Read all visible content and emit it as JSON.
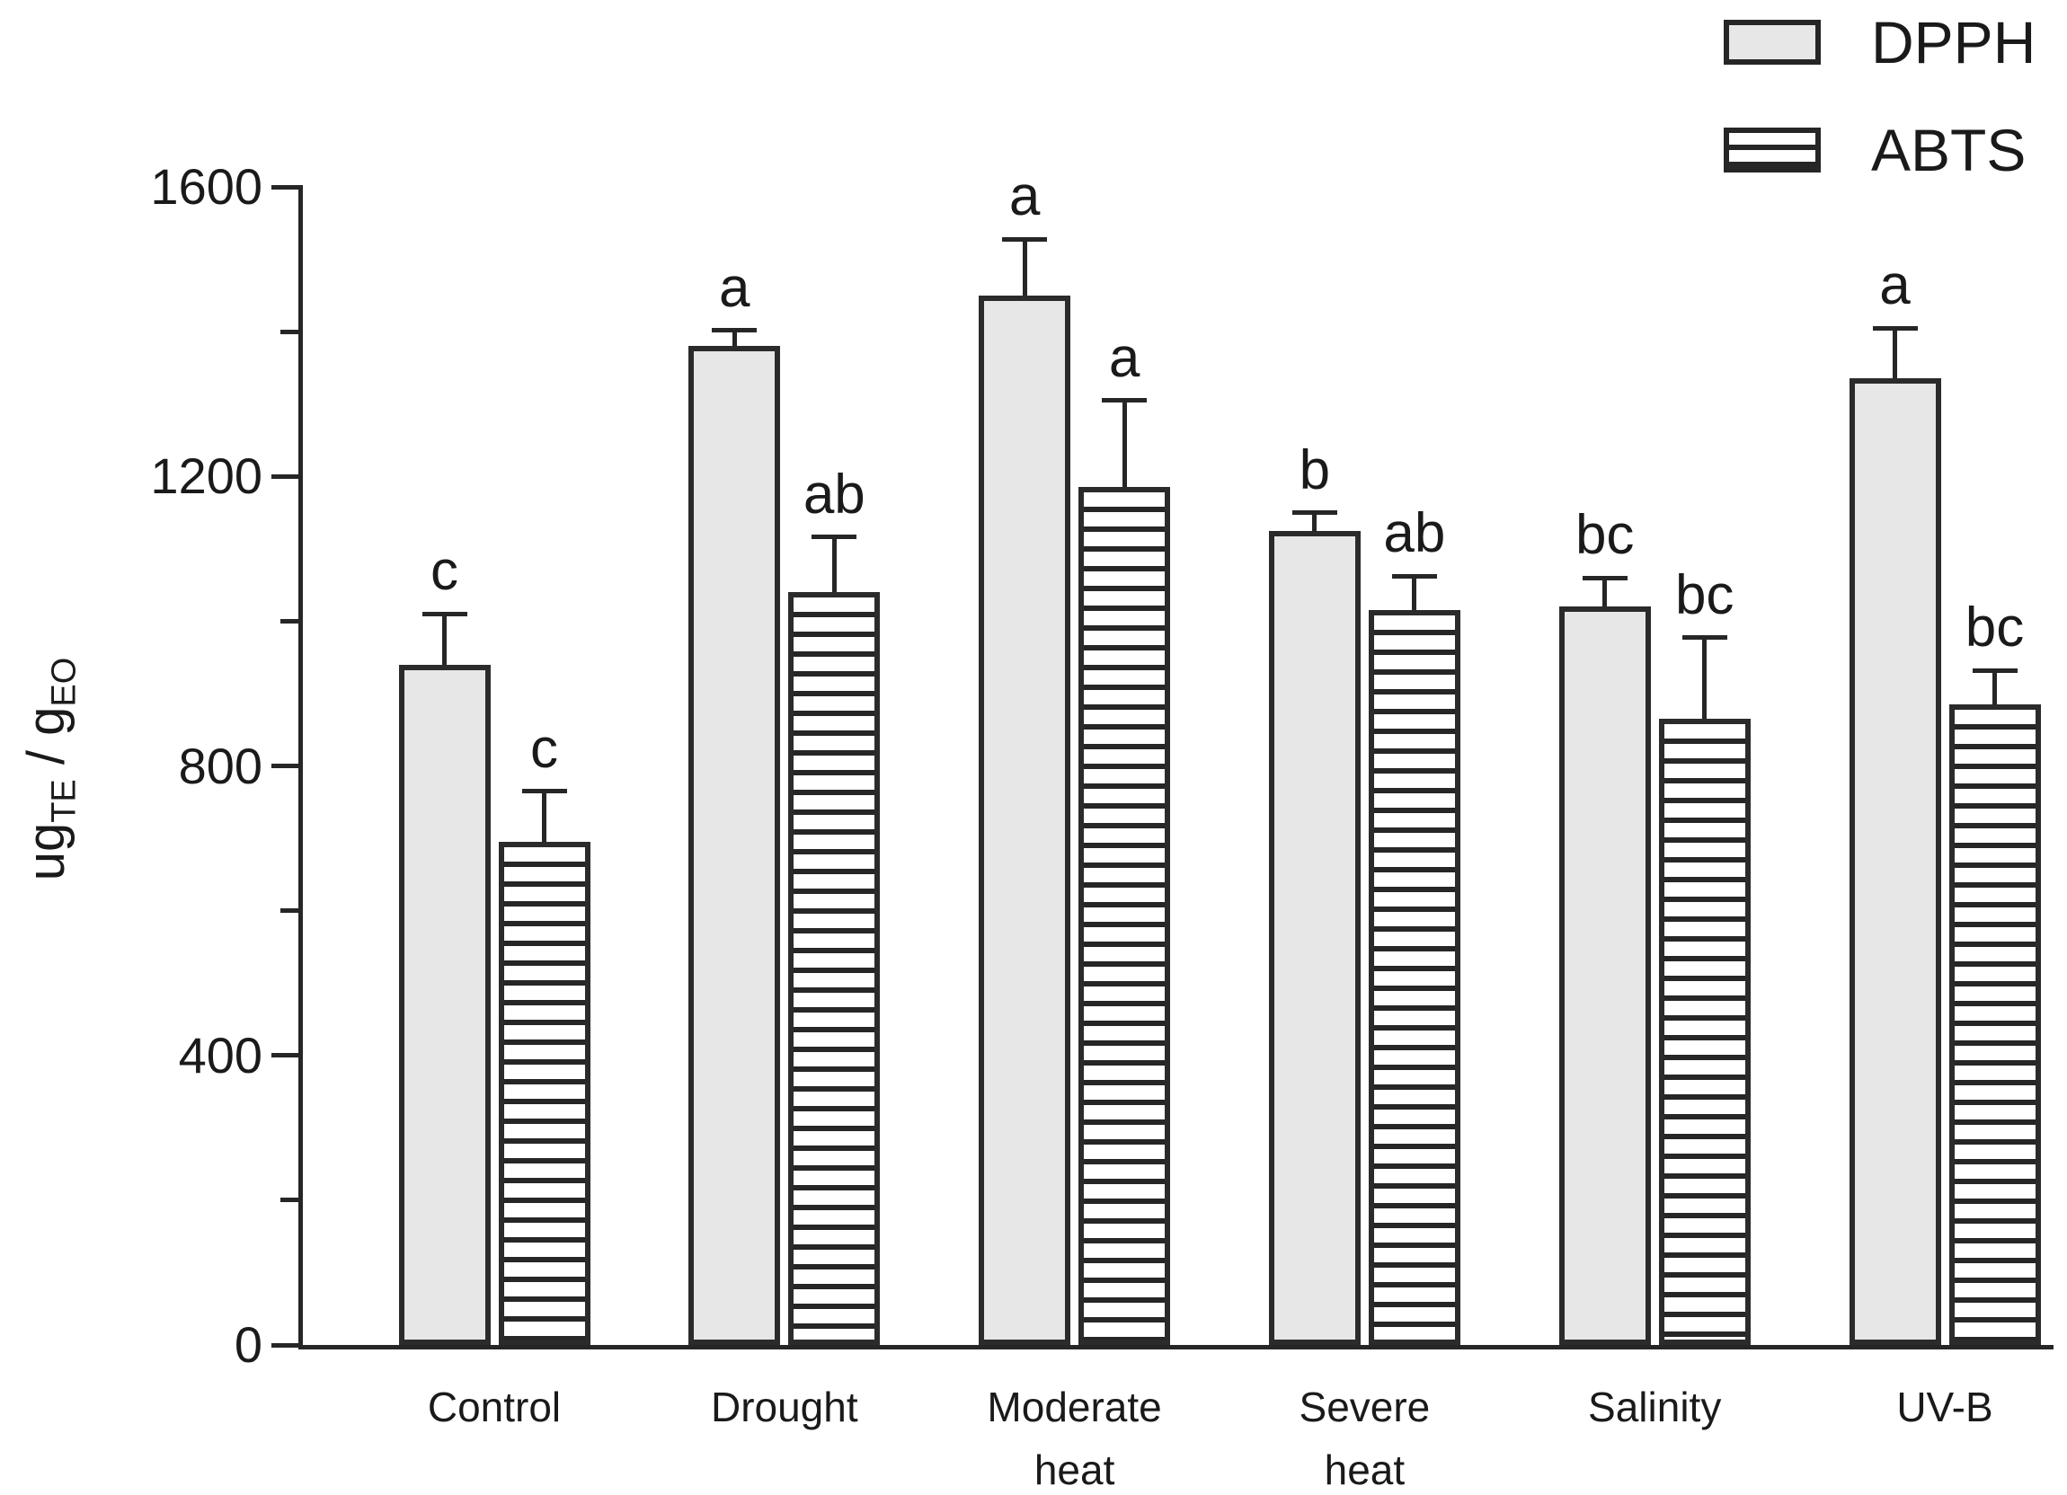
{
  "chart_data": {
    "type": "bar",
    "title": "",
    "ylabel_text": "ug_TE / g_EO",
    "ylabel_parts": {
      "pre": "ug",
      "pre_sub": "TE",
      "mid": " / g",
      "mid_sub": "EO"
    },
    "xlabel": "",
    "ylim": [
      0,
      1600
    ],
    "yticks": [
      0,
      400,
      800,
      1200,
      1600
    ],
    "yticks_minor": [
      200,
      600,
      1000,
      1400
    ],
    "grid": false,
    "legend_position": "top-right",
    "categories": [
      "Control",
      "Drought",
      "Moderate heat",
      "Severe heat",
      "Salinity",
      "UV-B"
    ],
    "categories_lines": [
      [
        "Control"
      ],
      [
        "Drought"
      ],
      [
        "Moderate",
        "heat"
      ],
      [
        "Severe",
        "heat"
      ],
      [
        "Salinity"
      ],
      [
        "UV-B"
      ]
    ],
    "series": [
      {
        "name": "DPPH",
        "pattern": "solid",
        "fill": "#e7e7e7",
        "values": [
          940,
          1380,
          1450,
          1125,
          1020,
          1335
        ],
        "errors": [
          70,
          22,
          78,
          25,
          40,
          70
        ],
        "sig_letters": [
          "c",
          "a",
          "a",
          "b",
          "bc",
          "a"
        ]
      },
      {
        "name": "ABTS",
        "pattern": "h-stripes",
        "fill": "#ffffff",
        "values": [
          695,
          1040,
          1185,
          1015,
          865,
          885
        ],
        "errors": [
          70,
          76,
          120,
          47,
          112,
          47
        ],
        "sig_letters": [
          "c",
          "ab",
          "a",
          "ab",
          "bc",
          "bc"
        ]
      }
    ],
    "colors": {
      "line": "#262626",
      "text": "#1a1a1a",
      "bar_fill": "#e7e7e7"
    }
  }
}
